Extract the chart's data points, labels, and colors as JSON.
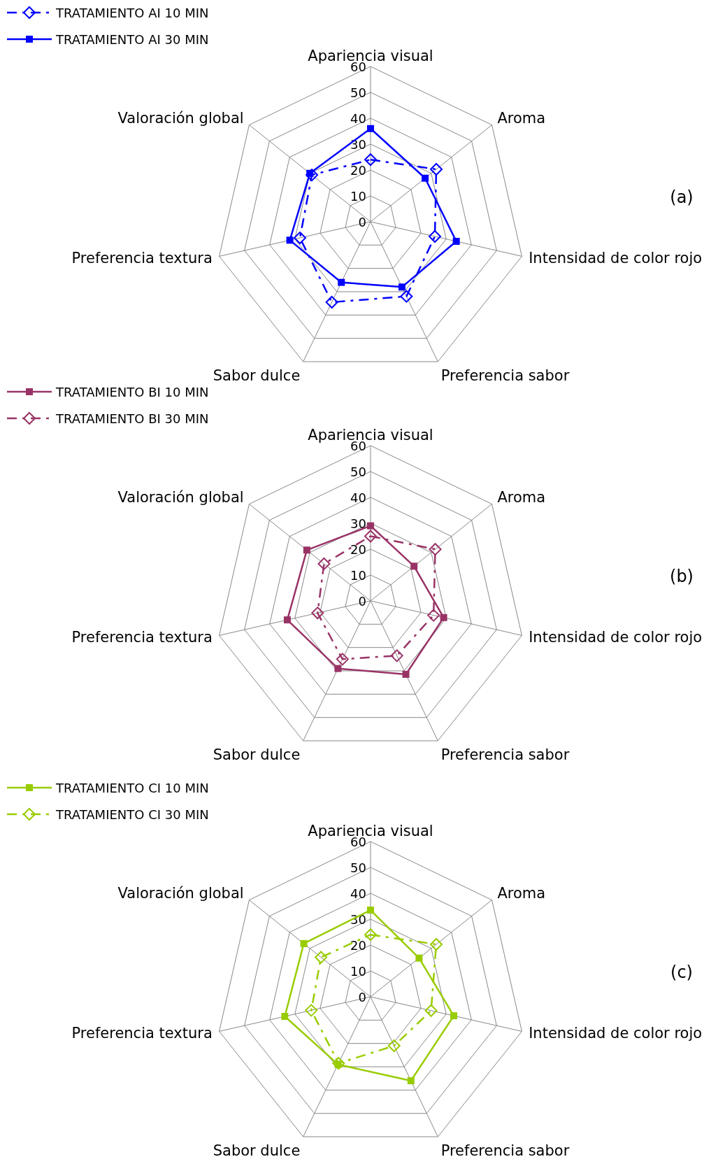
{
  "chart_data": [
    {
      "type": "radar",
      "categories": [
        "Apariencia visual",
        "Aroma",
        "Intensidad de color rojo",
        "Preferencia sabor",
        "Sabor dulce",
        "Preferencia textura",
        "Valoración global"
      ],
      "ylim": [
        0,
        60
      ],
      "yticks": [
        0,
        10,
        20,
        30,
        40,
        50,
        60
      ],
      "legend": "top left",
      "annotations": [
        "(a)"
      ],
      "series": [
        {
          "name": "TRATAMIENTO AI 10 MIN",
          "color": "#0000ff",
          "marker": "diamond",
          "line_style": "dashed",
          "values": [
            24,
            32.5,
            25.5,
            32,
            34.5,
            28,
            29
          ]
        },
        {
          "name": "TRATAMIENTO AI 30 MIN",
          "color": "#0000ff",
          "marker": "square",
          "line_style": "solid",
          "values": [
            36,
            27,
            34,
            28,
            26,
            32,
            30
          ]
        }
      ]
    },
    {
      "type": "radar",
      "categories": [
        "Apariencia visual",
        "Aroma",
        "Intensidad de color rojo",
        "Preferencia sabor",
        "Sabor dulce",
        "Preferencia textura",
        "Valoración global"
      ],
      "ylim": [
        0,
        60
      ],
      "yticks": [
        0,
        10,
        20,
        30,
        40,
        50,
        60
      ],
      "legend": "top left",
      "annotations": [
        "(b)"
      ],
      "series": [
        {
          "name": "TRATAMIENTO BI 10 MIN",
          "color": "#993366",
          "marker": "square",
          "line_style": "solid",
          "values": [
            29,
            21.5,
            29,
            31.5,
            29,
            33,
            31.5
          ]
        },
        {
          "name": "TRATAMIENTO BI 30 MIN",
          "color": "#993366",
          "marker": "diamond",
          "line_style": "dashed",
          "values": [
            25,
            32,
            25,
            23.5,
            25,
            21,
            23
          ]
        }
      ]
    },
    {
      "type": "radar",
      "categories": [
        "Apariencia visual",
        "Aroma",
        "Intensidad de color rojo",
        "Preferencia sabor",
        "Sabor dulce",
        "Preferencia textura",
        "Valoración global"
      ],
      "ylim": [
        0,
        60
      ],
      "yticks": [
        0,
        10,
        20,
        30,
        40,
        50,
        60
      ],
      "legend": "top left",
      "annotations": [
        "(c)"
      ],
      "series": [
        {
          "name": "TRATAMIENTO CI 10 MIN",
          "color": "#99cc00",
          "marker": "square",
          "line_style": "solid",
          "values": [
            33.5,
            24,
            33,
            36,
            29,
            34,
            33
          ]
        },
        {
          "name": "TRATAMIENTO CI 30 MIN",
          "color": "#99cc00",
          "marker": "diamond",
          "line_style": "dashed",
          "values": [
            24,
            32.5,
            24,
            21,
            28.5,
            23.5,
            24.5
          ]
        }
      ]
    }
  ]
}
